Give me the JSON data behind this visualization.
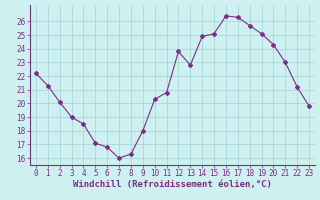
{
  "x": [
    0,
    1,
    2,
    3,
    4,
    5,
    6,
    7,
    8,
    9,
    10,
    11,
    12,
    13,
    14,
    15,
    16,
    17,
    18,
    19,
    20,
    21,
    22,
    23
  ],
  "y": [
    22.2,
    21.3,
    20.1,
    19.0,
    18.5,
    17.1,
    16.8,
    16.0,
    16.3,
    18.0,
    20.3,
    20.8,
    23.8,
    22.8,
    24.9,
    25.1,
    26.4,
    26.3,
    25.7,
    25.1,
    24.3,
    23.0,
    21.2,
    19.8
  ],
  "line_color": "#7b2d8b",
  "marker": "D",
  "marker_size": 2.0,
  "bg_color": "#cef0f0",
  "grid_color": "#9ed4d4",
  "xlabel": "Windchill (Refroidissement éolien,°C)",
  "xlabel_color": "#7b2d8b",
  "tick_color": "#7b2d8b",
  "ylim": [
    15.5,
    27.2
  ],
  "xlim": [
    -0.5,
    23.5
  ],
  "yticks": [
    16,
    17,
    18,
    19,
    20,
    21,
    22,
    23,
    24,
    25,
    26
  ],
  "xticks": [
    0,
    1,
    2,
    3,
    4,
    5,
    6,
    7,
    8,
    9,
    10,
    11,
    12,
    13,
    14,
    15,
    16,
    17,
    18,
    19,
    20,
    21,
    22,
    23
  ],
  "tick_fontsize": 5.5,
  "label_fontsize": 6.5,
  "linewidth": 0.8,
  "spine_color": "#7b2d8b"
}
